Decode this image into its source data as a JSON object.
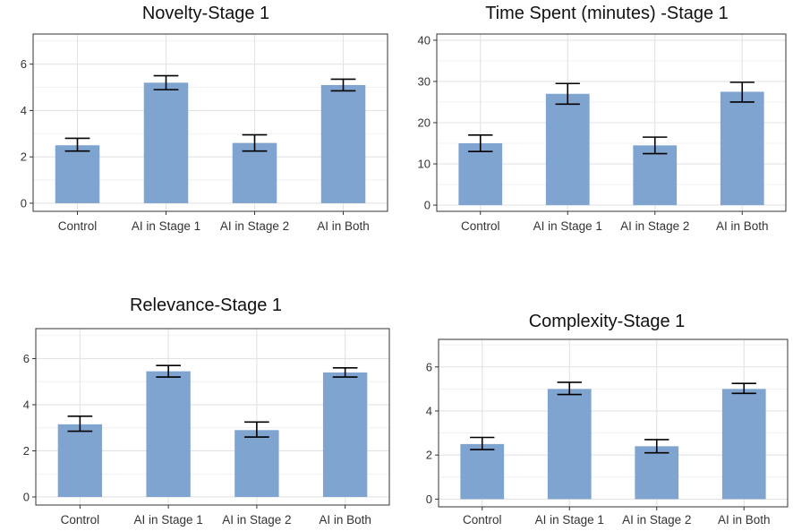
{
  "colors": {
    "bar": "#7fa4d0",
    "grid_major": "#e3e3e3",
    "grid_minor": "#f1f1f1",
    "frame": "#333333",
    "error_bar": "#000000"
  },
  "chart_data": [
    {
      "type": "bar",
      "title": "Novelty-Stage 1",
      "categories": [
        "Control",
        "AI in Stage 1",
        "AI in Stage 2",
        "AI in Both"
      ],
      "values": [
        2.5,
        5.2,
        2.6,
        5.1
      ],
      "error_low": [
        2.25,
        4.9,
        2.25,
        4.85
      ],
      "error_high": [
        2.8,
        5.5,
        2.95,
        5.35
      ],
      "ylim": [
        -0.35,
        7.3
      ],
      "yticks": [
        0,
        2,
        4,
        6
      ],
      "xlabel": "",
      "ylabel": "",
      "grid": true
    },
    {
      "type": "bar",
      "title": "Time Spent (minutes) -Stage 1",
      "categories": [
        "Control",
        "AI in Stage 1",
        "AI in Stage 2",
        "AI in Both"
      ],
      "values": [
        15.0,
        27.0,
        14.5,
        27.5
      ],
      "error_low": [
        13.0,
        24.5,
        12.5,
        25.0
      ],
      "error_high": [
        17.0,
        29.5,
        16.5,
        29.8
      ],
      "ylim": [
        -1.5,
        41.5
      ],
      "yticks": [
        0,
        10,
        20,
        30,
        40
      ],
      "xlabel": "",
      "ylabel": "",
      "grid": true
    },
    {
      "type": "bar",
      "title": "Relevance-Stage 1",
      "categories": [
        "Control",
        "AI in Stage 1",
        "AI in Stage 2",
        "AI in Both"
      ],
      "values": [
        3.15,
        5.45,
        2.9,
        5.4
      ],
      "error_low": [
        2.85,
        5.2,
        2.6,
        5.2
      ],
      "error_high": [
        3.5,
        5.7,
        3.25,
        5.6
      ],
      "ylim": [
        -0.35,
        7.3
      ],
      "yticks": [
        0,
        2,
        4,
        6
      ],
      "xlabel": "",
      "ylabel": "",
      "grid": true
    },
    {
      "type": "bar",
      "title": "Complexity-Stage 1",
      "categories": [
        "Control",
        "AI in Stage 1",
        "AI in Stage 2",
        "AI in Both"
      ],
      "values": [
        2.5,
        5.0,
        2.4,
        5.0
      ],
      "error_low": [
        2.25,
        4.75,
        2.1,
        4.8
      ],
      "error_high": [
        2.8,
        5.3,
        2.7,
        5.25
      ],
      "ylim": [
        -0.35,
        7.25
      ],
      "yticks": [
        0,
        2,
        4,
        6
      ],
      "xlabel": "",
      "ylabel": "",
      "grid": true
    }
  ]
}
